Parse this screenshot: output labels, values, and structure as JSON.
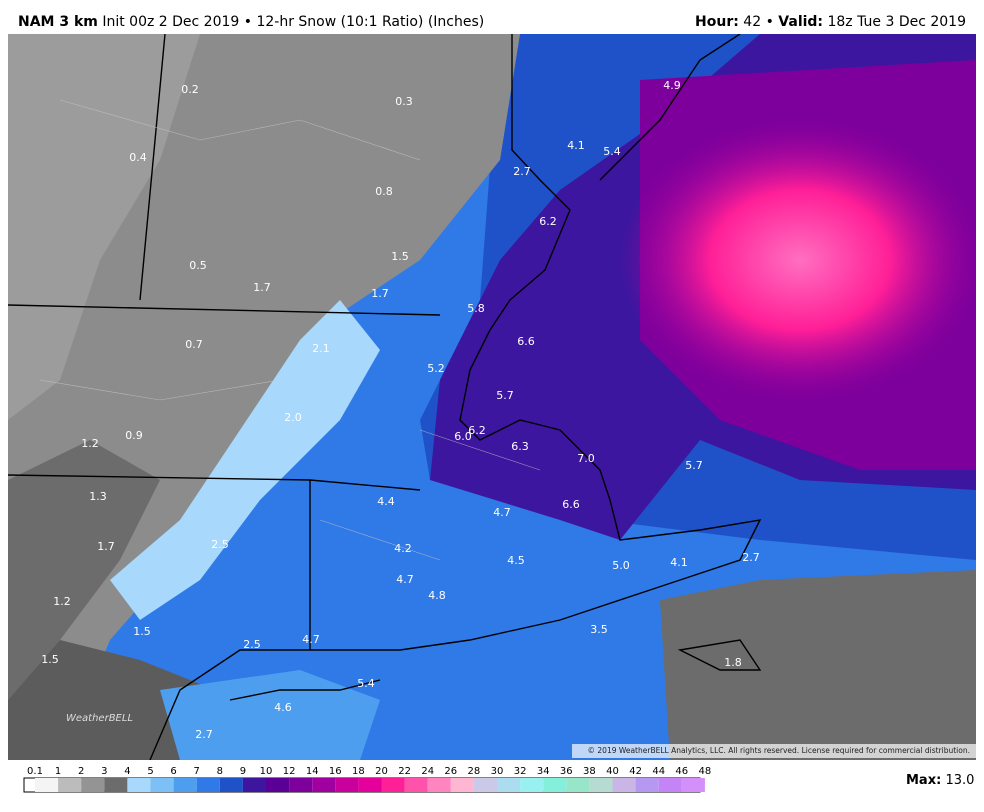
{
  "header": {
    "model": "NAM 3 km",
    "description": "Init 00z 2 Dec 2019 • 12-hr Snow (10:1 Ratio) (Inches)",
    "hour_label": "Hour:",
    "hour": "42",
    "separator": "•",
    "valid_label": "Valid:",
    "valid": "18z Tue 3 Dec 2019"
  },
  "map": {
    "labels": [
      "0.2",
      "0.3",
      "0.4",
      "0.8",
      "4.9",
      "4.1",
      "5.4",
      "2.7",
      "6.2",
      "0.5",
      "1.5",
      "1.7",
      "1.7",
      "5.8",
      "6.6",
      "0.7",
      "2.1",
      "5.2",
      "5.7",
      "2.0",
      "6.2",
      "6.0",
      "1.2",
      "0.9",
      "6.3",
      "7.0",
      "5.7",
      "1.3",
      "4.4",
      "6.6",
      "4.7",
      "1.7",
      "2.5",
      "4.2",
      "4.5",
      "5.0",
      "4.1",
      "2.7",
      "4.7",
      "4.8",
      "1.2",
      "1.5",
      "3.5",
      "2.5",
      "4.7",
      "1.5",
      "1.8",
      "5.4",
      "4.6",
      "2.7"
    ],
    "logo": "WeatherBELL",
    "copyright": "© 2019 WeatherBELL Analytics, LLC. All rights reserved. License required for commercial distribution."
  },
  "legend": {
    "ticks": [
      "0.1",
      "1",
      "2",
      "3",
      "4",
      "5",
      "6",
      "7",
      "8",
      "9",
      "10",
      "12",
      "14",
      "16",
      "18",
      "20",
      "22",
      "24",
      "26",
      "28",
      "30",
      "32",
      "34",
      "36",
      "38",
      "40",
      "42",
      "44",
      "46",
      "48"
    ],
    "colors": [
      "#f4f4f4",
      "#bcbcbc",
      "#949494",
      "#6c6c6c",
      "#a8d8fb",
      "#7cc0f6",
      "#4e9ef0",
      "#2f7ae6",
      "#1f52c8",
      "#3d169f",
      "#5b0097",
      "#7e009c",
      "#a100a1",
      "#c9009c",
      "#e6009b",
      "#ff1f97",
      "#ff52ab",
      "#ff84bf",
      "#ffb6d3",
      "#cacae8",
      "#acdcf2",
      "#98f0f0",
      "#84f0dc",
      "#98e6ca",
      "#b6dcd2",
      "#cab6e6",
      "#b698f0",
      "#c484f5",
      "#d490fa"
    ],
    "max_label": "Max:",
    "max": "13.0"
  }
}
